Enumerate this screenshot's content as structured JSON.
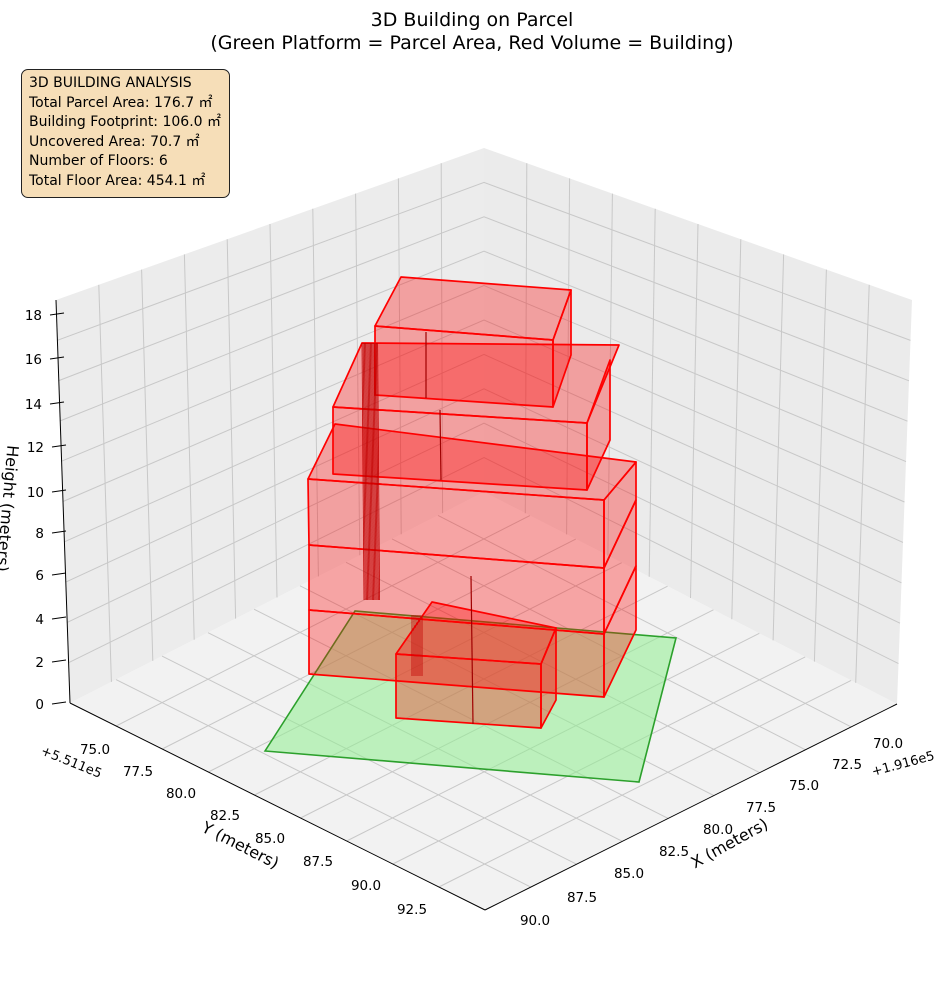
{
  "chart_data": {
    "type": "3d-extruded-polygons",
    "title_line1": "3D Building on Parcel",
    "title_line2": "(Green Platform = Parcel Area, Red Volume = Building)",
    "x_axis": {
      "label": "X (meters)",
      "offset": "+1.916e5",
      "ticks": [
        "70.0",
        "72.5",
        "75.0",
        "77.5",
        "80.0",
        "82.5",
        "85.0",
        "87.5",
        "90.0"
      ]
    },
    "y_axis": {
      "label": "Y (meters)",
      "offset": "+5.511e5",
      "ticks": [
        "75.0",
        "77.5",
        "80.0",
        "82.5",
        "85.0",
        "87.5",
        "90.0",
        "92.5"
      ]
    },
    "z_axis": {
      "label": "Height (meters)",
      "ticks": [
        "0",
        "2",
        "4",
        "6",
        "8",
        "10",
        "12",
        "14",
        "16",
        "18"
      ]
    },
    "grid": true,
    "parcel": {
      "color": "#2ca02c",
      "fill": "#90ee90"
    },
    "building": {
      "color": "#ff0000",
      "floors": 6
    },
    "info": {
      "heading": "3D BUILDING ANALYSIS",
      "lines": [
        "Total Parcel Area: 176.7 ㎡",
        "Building Footprint: 106.0 ㎡",
        "Uncovered Area: 70.7 ㎡",
        "Number of Floors: 6",
        "Total Floor Area: 454.1 ㎡"
      ]
    }
  }
}
